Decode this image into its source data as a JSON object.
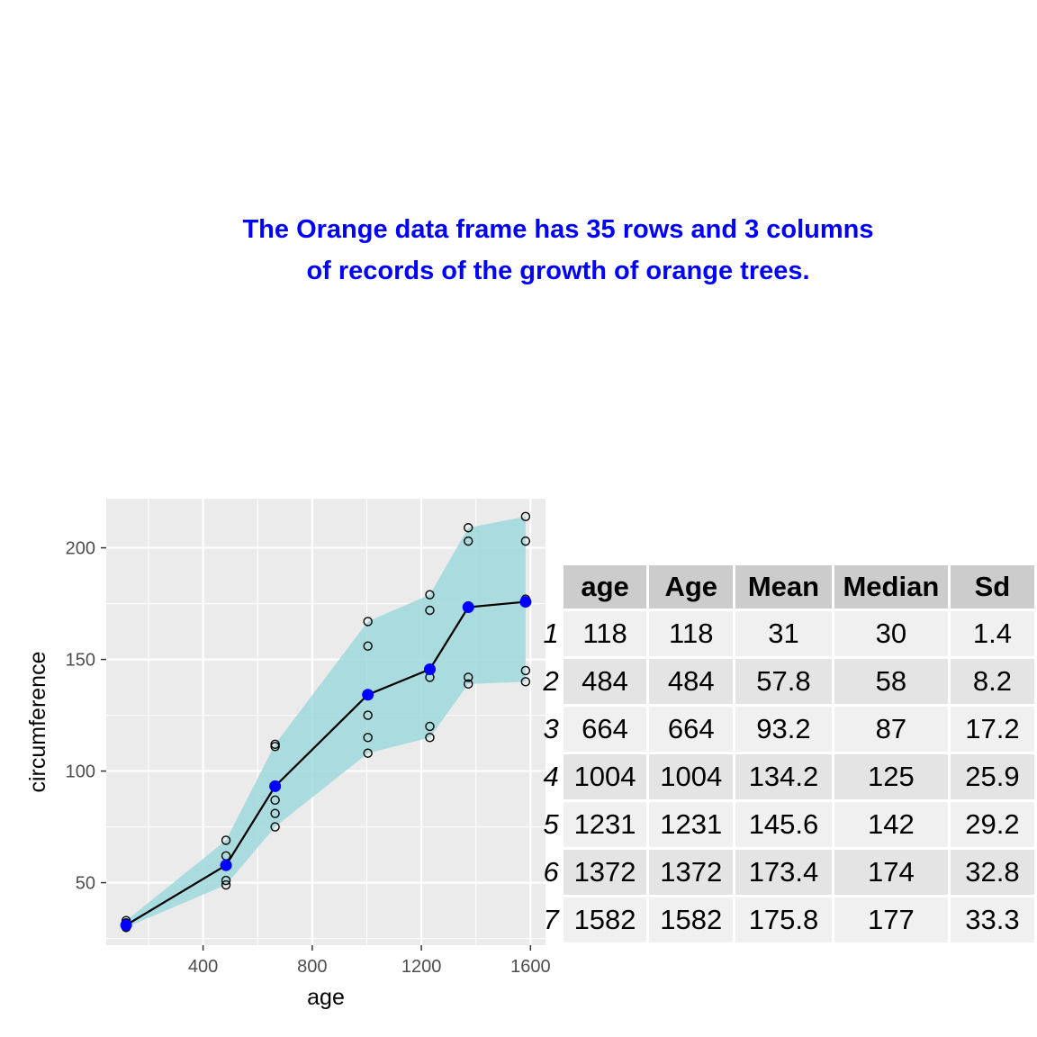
{
  "title_lines": [
    "The Orange data frame has 35 rows and 3 columns",
    "of records of the growth of orange trees."
  ],
  "colors": {
    "title": "#0000ff",
    "panel_bg": "#ebebeb",
    "grid": "#ffffff",
    "ribbon": "#9fd8dc",
    "mean_point": "#0000ff",
    "line": "#000000"
  },
  "chart_data": {
    "type": "line",
    "xlabel": "age",
    "ylabel": "circumference",
    "xlim": [
      45,
      1655
    ],
    "ylim": [
      22,
      222
    ],
    "x_ticks": [
      400,
      800,
      1200,
      1600
    ],
    "y_ticks": [
      50,
      100,
      150,
      200
    ],
    "grid": true,
    "points": {
      "x": [
        118,
        118,
        118,
        118,
        118,
        484,
        484,
        484,
        484,
        484,
        664,
        664,
        664,
        664,
        664,
        1004,
        1004,
        1004,
        1004,
        1004,
        1231,
        1231,
        1231,
        1231,
        1231,
        1372,
        1372,
        1372,
        1372,
        1372,
        1582,
        1582,
        1582,
        1582,
        1582
      ],
      "y": [
        30,
        33,
        30,
        32,
        30,
        58,
        69,
        51,
        62,
        49,
        87,
        111,
        75,
        112,
        81,
        115,
        156,
        108,
        167,
        125,
        120,
        172,
        115,
        179,
        142,
        142,
        203,
        139,
        209,
        174,
        145,
        203,
        140,
        214,
        177
      ]
    },
    "mean_line": {
      "x": [
        118,
        484,
        664,
        1004,
        1231,
        1372,
        1582
      ],
      "y": [
        31,
        57.8,
        93.2,
        134.2,
        145.6,
        173.4,
        175.8
      ]
    },
    "ribbon": {
      "x": [
        118,
        484,
        664,
        1004,
        1231,
        1372,
        1582
      ],
      "lower": [
        30,
        49,
        75,
        108,
        115,
        139,
        140
      ],
      "upper": [
        33,
        69,
        112,
        167,
        179,
        209,
        214
      ]
    }
  },
  "table": {
    "columns": [
      "age",
      "Age",
      "Mean",
      "Median",
      "Sd"
    ],
    "rows": [
      {
        "rn": "1",
        "cells": [
          "118",
          "118",
          "31",
          "30",
          "1.4"
        ]
      },
      {
        "rn": "2",
        "cells": [
          "484",
          "484",
          "57.8",
          "58",
          "8.2"
        ]
      },
      {
        "rn": "3",
        "cells": [
          "664",
          "664",
          "93.2",
          "87",
          "17.2"
        ]
      },
      {
        "rn": "4",
        "cells": [
          "1004",
          "1004",
          "134.2",
          "125",
          "25.9"
        ]
      },
      {
        "rn": "5",
        "cells": [
          "1231",
          "1231",
          "145.6",
          "142",
          "29.2"
        ]
      },
      {
        "rn": "6",
        "cells": [
          "1372",
          "1372",
          "173.4",
          "174",
          "32.8"
        ]
      },
      {
        "rn": "7",
        "cells": [
          "1582",
          "1582",
          "175.8",
          "177",
          "33.3"
        ]
      }
    ]
  }
}
